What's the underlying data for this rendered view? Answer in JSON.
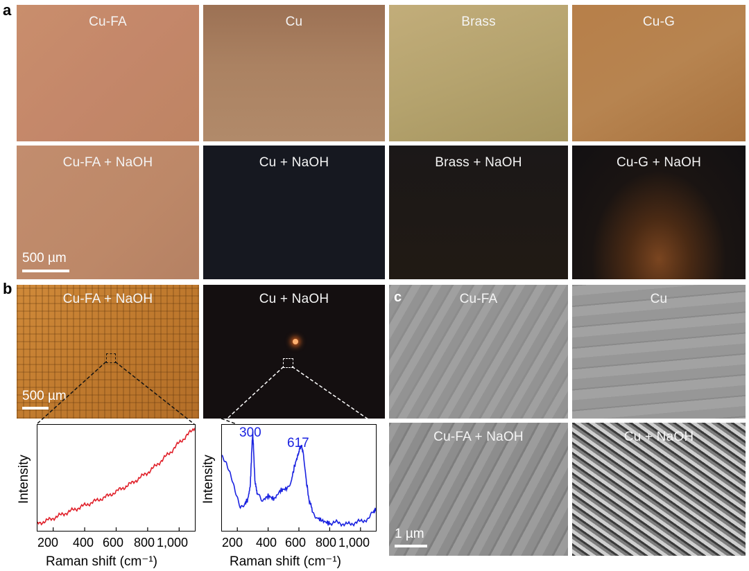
{
  "panel_letters": {
    "a": "a",
    "b": "b",
    "c": "c"
  },
  "panel_a": {
    "row1": [
      "Cu-FA",
      "Cu",
      "Brass",
      "Cu-G"
    ],
    "row2": [
      "Cu-FA + NaOH",
      "Cu + NaOH",
      "Brass + NaOH",
      "Cu-G + NaOH"
    ],
    "scale_bar": "500 µm"
  },
  "panel_b": {
    "images": [
      "Cu-FA + NaOH",
      "Cu + NaOH"
    ],
    "scale_bar": "500 µm",
    "ylabel": "Intensity",
    "xlabel": "Raman shift (cm⁻¹)",
    "ticks": [
      "200",
      "400",
      "600",
      "800",
      "1,000"
    ],
    "peaks": [
      "300",
      "617"
    ]
  },
  "panel_c": {
    "images": [
      "Cu-FA",
      "Cu",
      "Cu-FA + NaOH",
      "Cu + NaOH"
    ],
    "scale_bar": "1 µm"
  },
  "colors": {
    "red_spectrum": "#e0202a",
    "blue_spectrum": "#1a22e0"
  },
  "chart_data": [
    {
      "type": "line",
      "xlabel": "Raman shift (cm⁻¹)",
      "ylabel": "Intensity",
      "xlim": [
        100,
        1100
      ],
      "xticks": [
        200,
        400,
        600,
        800,
        1000
      ],
      "series": [
        {
          "color": "#e0202a",
          "x": [
            100,
            150,
            200,
            250,
            300,
            350,
            400,
            450,
            500,
            550,
            600,
            650,
            700,
            750,
            800,
            850,
            900,
            950,
            1000,
            1050,
            1100
          ],
          "y": [
            0.07,
            0.09,
            0.12,
            0.15,
            0.18,
            0.21,
            0.24,
            0.27,
            0.3,
            0.33,
            0.37,
            0.41,
            0.45,
            0.5,
            0.55,
            0.61,
            0.68,
            0.75,
            0.83,
            0.9,
            0.97
          ]
        }
      ]
    },
    {
      "type": "line",
      "xlabel": "Raman shift (cm⁻¹)",
      "ylabel": "Intensity",
      "xlim": [
        100,
        1100
      ],
      "xticks": [
        200,
        400,
        600,
        800,
        1000
      ],
      "annotations": [
        "300",
        "617"
      ],
      "series": [
        {
          "color": "#1a22e0",
          "x": [
            100,
            130,
            160,
            190,
            220,
            250,
            270,
            285,
            295,
            300,
            305,
            315,
            330,
            360,
            400,
            440,
            480,
            520,
            550,
            570,
            590,
            605,
            617,
            630,
            645,
            665,
            690,
            720,
            760,
            800,
            850,
            900,
            950,
            1000,
            1050,
            1080,
            1100
          ],
          "y": [
            0.7,
            0.62,
            0.5,
            0.35,
            0.22,
            0.26,
            0.3,
            0.45,
            0.8,
            0.92,
            0.78,
            0.45,
            0.35,
            0.28,
            0.33,
            0.3,
            0.38,
            0.4,
            0.47,
            0.6,
            0.7,
            0.78,
            0.8,
            0.72,
            0.5,
            0.3,
            0.18,
            0.12,
            0.09,
            0.07,
            0.08,
            0.06,
            0.07,
            0.09,
            0.11,
            0.17,
            0.2
          ]
        }
      ]
    }
  ]
}
